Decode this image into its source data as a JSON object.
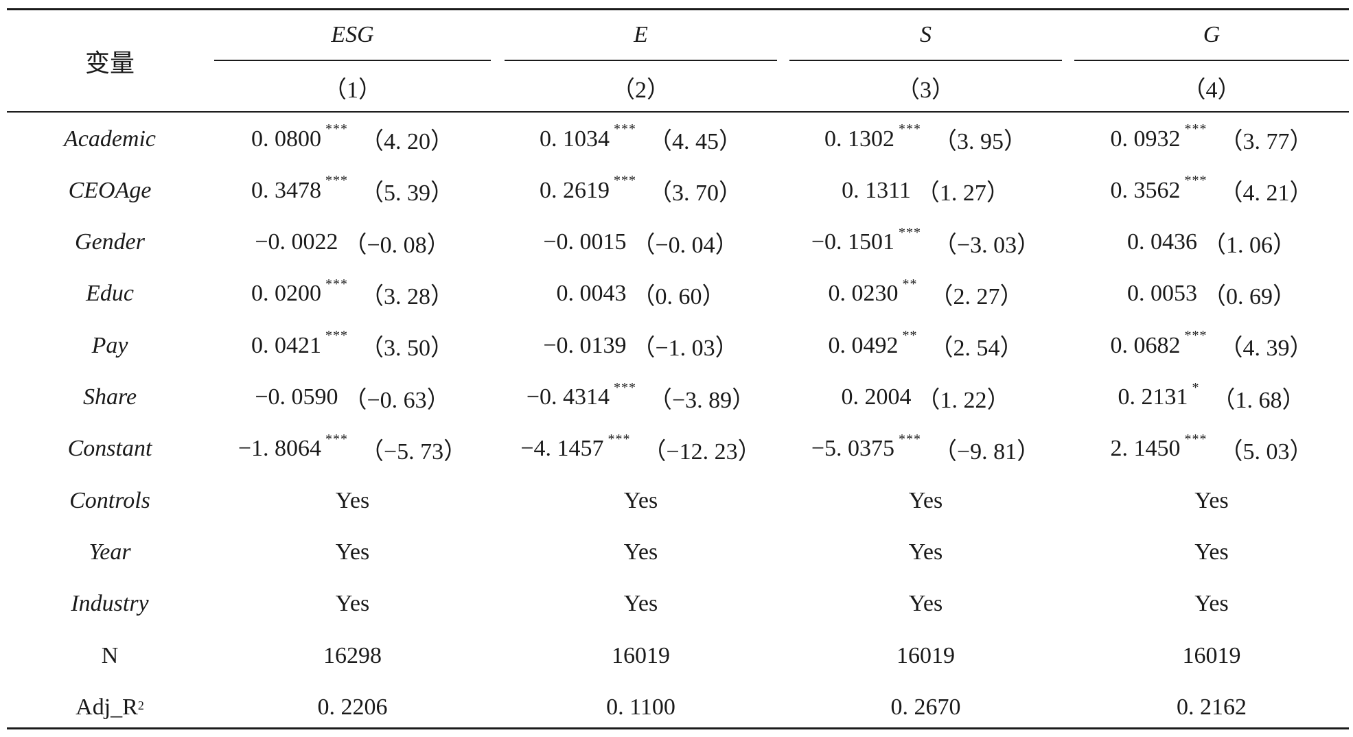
{
  "table": {
    "var_header": "变量",
    "groups": [
      {
        "name": "ESG",
        "num": "（1）"
      },
      {
        "name": "E",
        "num": "（2）"
      },
      {
        "name": "S",
        "num": "（3）"
      },
      {
        "name": "G",
        "num": "（4）"
      }
    ],
    "rows": [
      {
        "label": "Academic",
        "cells": [
          {
            "coef": "0. 0800",
            "stars": "***",
            "t": "（4. 20）"
          },
          {
            "coef": "0. 1034",
            "stars": "***",
            "t": "（4. 45）"
          },
          {
            "coef": "0. 1302",
            "stars": "***",
            "t": "（3. 95）"
          },
          {
            "coef": "0. 0932",
            "stars": "***",
            "t": "（3. 77）"
          }
        ]
      },
      {
        "label": "CEOAge",
        "cells": [
          {
            "coef": "0. 3478",
            "stars": "***",
            "t": "（5. 39）"
          },
          {
            "coef": "0. 2619",
            "stars": "***",
            "t": "（3. 70）"
          },
          {
            "coef": "0. 1311",
            "stars": "",
            "t": "（1. 27）"
          },
          {
            "coef": "0. 3562",
            "stars": "***",
            "t": "（4. 21）"
          }
        ]
      },
      {
        "label": "Gender",
        "cells": [
          {
            "coef": "−0. 0022",
            "stars": "",
            "t": "（−0. 08）"
          },
          {
            "coef": "−0. 0015",
            "stars": "",
            "t": "（−0. 04）"
          },
          {
            "coef": "−0. 1501",
            "stars": "***",
            "t": "（−3. 03）"
          },
          {
            "coef": "0. 0436",
            "stars": "",
            "t": "（1. 06）"
          }
        ]
      },
      {
        "label": "Educ",
        "cells": [
          {
            "coef": "0. 0200",
            "stars": "***",
            "t": "（3. 28）"
          },
          {
            "coef": "0. 0043",
            "stars": "",
            "t": "（0. 60）"
          },
          {
            "coef": "0. 0230",
            "stars": "**",
            "t": "（2. 27）"
          },
          {
            "coef": "0. 0053",
            "stars": "",
            "t": "（0. 69）"
          }
        ]
      },
      {
        "label": "Pay",
        "cells": [
          {
            "coef": "0. 0421",
            "stars": "***",
            "t": "（3. 50）"
          },
          {
            "coef": "−0. 0139",
            "stars": "",
            "t": "（−1. 03）"
          },
          {
            "coef": "0. 0492",
            "stars": "**",
            "t": "（2. 54）"
          },
          {
            "coef": "0. 0682",
            "stars": "***",
            "t": "（4. 39）"
          }
        ]
      },
      {
        "label": "Share",
        "cells": [
          {
            "coef": "−0. 0590",
            "stars": "",
            "t": "（−0. 63）"
          },
          {
            "coef": "−0. 4314",
            "stars": "***",
            "t": "（−3. 89）"
          },
          {
            "coef": "0. 2004",
            "stars": "",
            "t": "（1. 22）"
          },
          {
            "coef": "0. 2131",
            "stars": "*",
            "t": "（1. 68）"
          }
        ]
      },
      {
        "label": "Constant",
        "cells": [
          {
            "coef": "−1. 8064",
            "stars": "***",
            "t": "（−5. 73）"
          },
          {
            "coef": "−4. 1457",
            "stars": "***",
            "t": "（−12. 23）"
          },
          {
            "coef": "−5. 0375",
            "stars": "***",
            "t": "（−9. 81）"
          },
          {
            "coef": "2. 1450",
            "stars": "***",
            "t": "（5. 03）"
          }
        ]
      },
      {
        "label": "Controls",
        "cells": [
          {
            "coef": "Yes"
          },
          {
            "coef": "Yes"
          },
          {
            "coef": "Yes"
          },
          {
            "coef": "Yes"
          }
        ]
      },
      {
        "label": "Year",
        "cells": [
          {
            "coef": "Yes"
          },
          {
            "coef": "Yes"
          },
          {
            "coef": "Yes"
          },
          {
            "coef": "Yes"
          }
        ]
      },
      {
        "label": "Industry",
        "cells": [
          {
            "coef": "Yes"
          },
          {
            "coef": "Yes"
          },
          {
            "coef": "Yes"
          },
          {
            "coef": "Yes"
          }
        ]
      },
      {
        "label": "N",
        "upright": true,
        "cells": [
          {
            "coef": "16298"
          },
          {
            "coef": "16019"
          },
          {
            "coef": "16019"
          },
          {
            "coef": "16019"
          }
        ]
      },
      {
        "label": "Adj_R",
        "sup": "2",
        "upright": true,
        "cells": [
          {
            "coef": "0. 2206"
          },
          {
            "coef": "0. 1100"
          },
          {
            "coef": "0. 2670"
          },
          {
            "coef": "0. 2162"
          }
        ]
      }
    ]
  }
}
